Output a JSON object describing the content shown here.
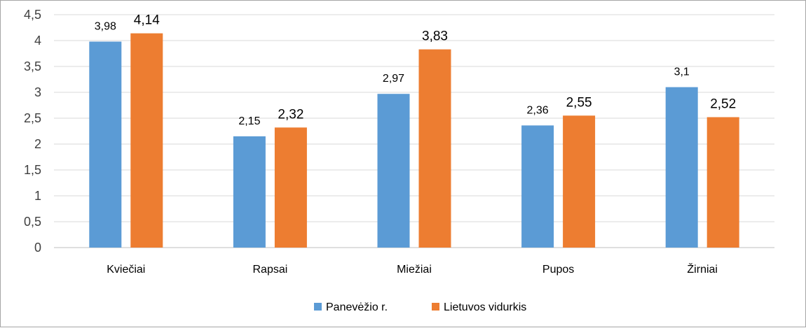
{
  "chart_data": {
    "type": "bar",
    "categories": [
      "Kviečiai",
      "Rapsai",
      "Miežiai",
      "Pupos",
      "Žirniai"
    ],
    "series": [
      {
        "name": "Panevėžio r.",
        "values": [
          3.98,
          2.15,
          2.97,
          2.36,
          3.1
        ],
        "labels": [
          "3,98",
          "2,15",
          "2,97",
          "2,36",
          "3,1"
        ],
        "color": "#5b9bd5"
      },
      {
        "name": "Lietuvos vidurkis",
        "values": [
          4.14,
          2.32,
          3.83,
          2.55,
          2.52
        ],
        "labels": [
          "4,14",
          "2,32",
          "3,83",
          "2,55",
          "2,52"
        ],
        "color": "#ed7d31"
      }
    ],
    "ylim": [
      0,
      4.5
    ],
    "yticks": [
      "0",
      "0,5",
      "1",
      "1,5",
      "2",
      "2,5",
      "3",
      "3,5",
      "4",
      "4,5"
    ],
    "grid": true,
    "legend_position": "bottom",
    "title": "",
    "xlabel": "",
    "ylabel": ""
  }
}
